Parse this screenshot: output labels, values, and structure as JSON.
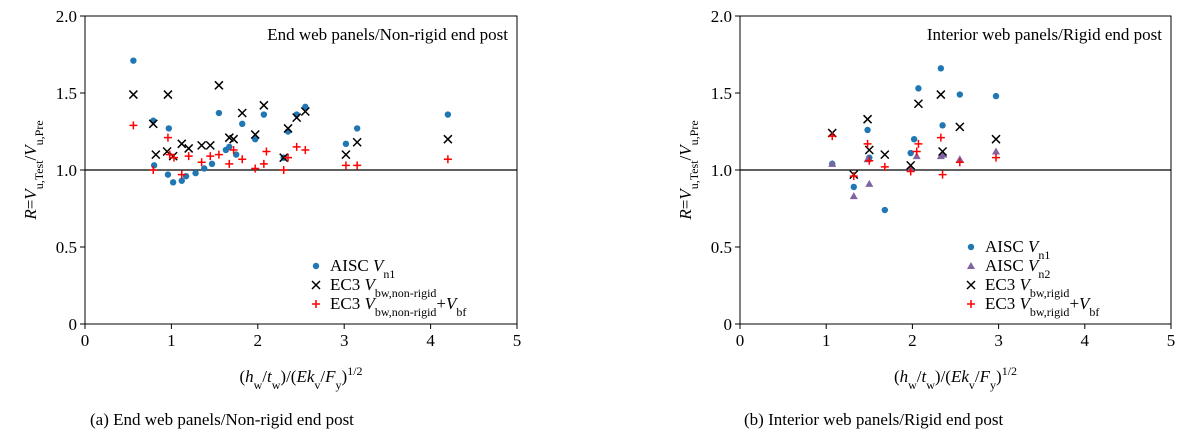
{
  "chart_data": [
    {
      "type": "scatter",
      "title": "End web panels/Non-rigid end post",
      "caption": "(a) End web panels/Non-rigid end post",
      "ylabel": {
        "base": "R",
        "eq": "=",
        "num_v": "V",
        "num_sub": "u,Test",
        "slash": "/",
        "den_v": "V",
        "den_sub": "u,Pre"
      },
      "xlabel": {
        "lp": "(",
        "a": "h",
        "a_sub": "w",
        "sl": "/",
        "b": "t",
        "b_sub": "w",
        "rp": ")/(",
        "c": "Ek",
        "c_sub": "v",
        "sl2": "/",
        "d": "F",
        "d_sub": "y",
        "rp2": ")",
        "sup": "1/2"
      },
      "xlim": [
        0,
        5
      ],
      "ylim": [
        0,
        2.0
      ],
      "x_ticks": [
        "0",
        "1",
        "2",
        "3",
        "4",
        "5"
      ],
      "y_ticks": [
        "0",
        "0.5",
        "1.0",
        "1.5",
        "2.0"
      ],
      "reference_line": 1.0,
      "legend_position": "bottom-right",
      "series": [
        {
          "name": "AISC V n1",
          "legend": {
            "label": "AISC ",
            "v": "V",
            "sub": "n1",
            "extra": "",
            "v2": "",
            "sub2": ""
          },
          "marker": "circle",
          "color": "#1f77b4",
          "points": [
            [
              0.56,
              1.71
            ],
            [
              0.79,
              1.32
            ],
            [
              0.8,
              1.03
            ],
            [
              0.96,
              0.97
            ],
            [
              0.97,
              1.27
            ],
            [
              1.02,
              0.92
            ],
            [
              1.12,
              0.93
            ],
            [
              1.17,
              0.96
            ],
            [
              1.28,
              0.98
            ],
            [
              1.38,
              1.01
            ],
            [
              1.47,
              1.04
            ],
            [
              1.55,
              1.37
            ],
            [
              1.63,
              1.13
            ],
            [
              1.67,
              1.15
            ],
            [
              1.75,
              1.1
            ],
            [
              1.82,
              1.3
            ],
            [
              1.97,
              1.2
            ],
            [
              2.07,
              1.36
            ],
            [
              2.3,
              1.08
            ],
            [
              2.35,
              1.25
            ],
            [
              2.45,
              1.36
            ],
            [
              2.55,
              1.41
            ],
            [
              3.02,
              1.17
            ],
            [
              3.15,
              1.27
            ],
            [
              4.2,
              1.36
            ]
          ]
        },
        {
          "name": "EC3 V bw,non-rigid",
          "legend": {
            "label": "EC3 ",
            "v": "V",
            "sub": "bw,non-rigid",
            "extra": "",
            "v2": "",
            "sub2": ""
          },
          "marker": "x",
          "color": "#000000",
          "points": [
            [
              0.56,
              1.49
            ],
            [
              0.79,
              1.3
            ],
            [
              0.82,
              1.1
            ],
            [
              0.95,
              1.12
            ],
            [
              0.96,
              1.49
            ],
            [
              1.02,
              1.09
            ],
            [
              1.12,
              1.17
            ],
            [
              1.2,
              1.14
            ],
            [
              1.35,
              1.16
            ],
            [
              1.45,
              1.16
            ],
            [
              1.55,
              1.55
            ],
            [
              1.67,
              1.21
            ],
            [
              1.72,
              1.2
            ],
            [
              1.82,
              1.37
            ],
            [
              1.97,
              1.23
            ],
            [
              2.07,
              1.42
            ],
            [
              2.3,
              1.08
            ],
            [
              2.35,
              1.27
            ],
            [
              2.45,
              1.34
            ],
            [
              2.55,
              1.38
            ],
            [
              3.02,
              1.1
            ],
            [
              3.15,
              1.18
            ],
            [
              4.2,
              1.2
            ]
          ]
        },
        {
          "name": "EC3 V bw,non-rigid + V bf",
          "legend": {
            "label": "EC3 ",
            "v": "V",
            "sub": "bw,non-rigid",
            "extra": "+",
            "v2": "V",
            "sub2": "bf"
          },
          "marker": "plus",
          "color": "#ff0000",
          "points": [
            [
              0.56,
              1.29
            ],
            [
              0.79,
              1.0
            ],
            [
              0.96,
              1.21
            ],
            [
              0.98,
              1.1
            ],
            [
              1.03,
              1.08
            ],
            [
              1.12,
              0.97
            ],
            [
              1.2,
              1.09
            ],
            [
              1.35,
              1.05
            ],
            [
              1.45,
              1.09
            ],
            [
              1.55,
              1.1
            ],
            [
              1.67,
              1.04
            ],
            [
              1.72,
              1.13
            ],
            [
              1.82,
              1.07
            ],
            [
              1.97,
              1.01
            ],
            [
              2.07,
              1.04
            ],
            [
              2.1,
              1.12
            ],
            [
              2.3,
              1.0
            ],
            [
              2.35,
              1.08
            ],
            [
              2.45,
              1.15
            ],
            [
              2.55,
              1.13
            ],
            [
              3.02,
              1.03
            ],
            [
              3.15,
              1.03
            ],
            [
              4.2,
              1.07
            ]
          ]
        }
      ]
    },
    {
      "type": "scatter",
      "title": "Interior web panels/Rigid end post",
      "caption": "(b) Interior web panels/Rigid end post",
      "ylabel": {
        "base": "R",
        "eq": "=",
        "num_v": "V",
        "num_sub": "u,Test",
        "slash": "/",
        "den_v": "V",
        "den_sub": "u,Pre"
      },
      "xlabel": {
        "lp": "(",
        "a": "h",
        "a_sub": "w",
        "sl": "/",
        "b": "t",
        "b_sub": "w",
        "rp": ")/(",
        "c": "Ek",
        "c_sub": "v",
        "sl2": "/",
        "d": "F",
        "d_sub": "y",
        "rp2": ")",
        "sup": "1/2"
      },
      "xlim": [
        0,
        5
      ],
      "ylim": [
        0,
        2.0
      ],
      "x_ticks": [
        "0",
        "1",
        "2",
        "3",
        "4",
        "5"
      ],
      "y_ticks": [
        "0",
        "0.5",
        "1.0",
        "1.5",
        "2.0"
      ],
      "reference_line": 1.0,
      "legend_position": "bottom-right",
      "series": [
        {
          "name": "AISC V n1",
          "legend": {
            "label": "AISC ",
            "v": "V",
            "sub": "n1",
            "extra": "",
            "v2": "",
            "sub2": ""
          },
          "marker": "circle",
          "color": "#1f77b4",
          "points": [
            [
              1.07,
              1.04
            ],
            [
              1.32,
              0.89
            ],
            [
              1.48,
              1.26
            ],
            [
              1.5,
              1.08
            ],
            [
              1.68,
              0.74
            ],
            [
              1.98,
              1.11
            ],
            [
              2.02,
              1.2
            ],
            [
              2.07,
              1.53
            ],
            [
              2.33,
              1.66
            ],
            [
              2.35,
              1.29
            ],
            [
              2.55,
              1.49
            ],
            [
              2.97,
              1.48
            ]
          ]
        },
        {
          "name": "AISC V n2",
          "legend": {
            "label": "AISC ",
            "v": "V",
            "sub": "n2",
            "extra": "",
            "v2": "",
            "sub2": ""
          },
          "marker": "triangle",
          "color": "#8064a2",
          "points": [
            [
              1.07,
              1.04
            ],
            [
              1.32,
              0.83
            ],
            [
              1.48,
              1.07
            ],
            [
              1.5,
              0.91
            ],
            [
              1.98,
              1.01
            ],
            [
              2.05,
              1.09
            ],
            [
              2.33,
              1.09
            ],
            [
              2.36,
              1.1
            ],
            [
              2.55,
              1.07
            ],
            [
              2.97,
              1.12
            ]
          ]
        },
        {
          "name": "EC3 V bw,rigid",
          "legend": {
            "label": "EC3 ",
            "v": "V",
            "sub": "bw,rigid",
            "extra": "",
            "v2": "",
            "sub2": ""
          },
          "marker": "x",
          "color": "#000000",
          "points": [
            [
              1.07,
              1.24
            ],
            [
              1.32,
              0.97
            ],
            [
              1.48,
              1.33
            ],
            [
              1.5,
              1.13
            ],
            [
              1.68,
              1.1
            ],
            [
              1.98,
              1.03
            ],
            [
              2.07,
              1.43
            ],
            [
              2.33,
              1.49
            ],
            [
              2.35,
              1.12
            ],
            [
              2.55,
              1.28
            ],
            [
              2.97,
              1.2
            ]
          ]
        },
        {
          "name": "EC3 V bw,rigid + V bf",
          "legend": {
            "label": "EC3 ",
            "v": "V",
            "sub": "bw,rigid",
            "extra": "+",
            "v2": "V",
            "sub2": "bf"
          },
          "marker": "plus",
          "color": "#ff0000",
          "points": [
            [
              1.07,
              1.22
            ],
            [
              1.32,
              0.96
            ],
            [
              1.48,
              1.17
            ],
            [
              1.5,
              1.06
            ],
            [
              1.68,
              1.02
            ],
            [
              1.98,
              0.99
            ],
            [
              2.05,
              1.12
            ],
            [
              2.07,
              1.17
            ],
            [
              2.33,
              1.21
            ],
            [
              2.35,
              0.97
            ],
            [
              2.55,
              1.05
            ],
            [
              2.97,
              1.08
            ]
          ]
        }
      ]
    }
  ]
}
